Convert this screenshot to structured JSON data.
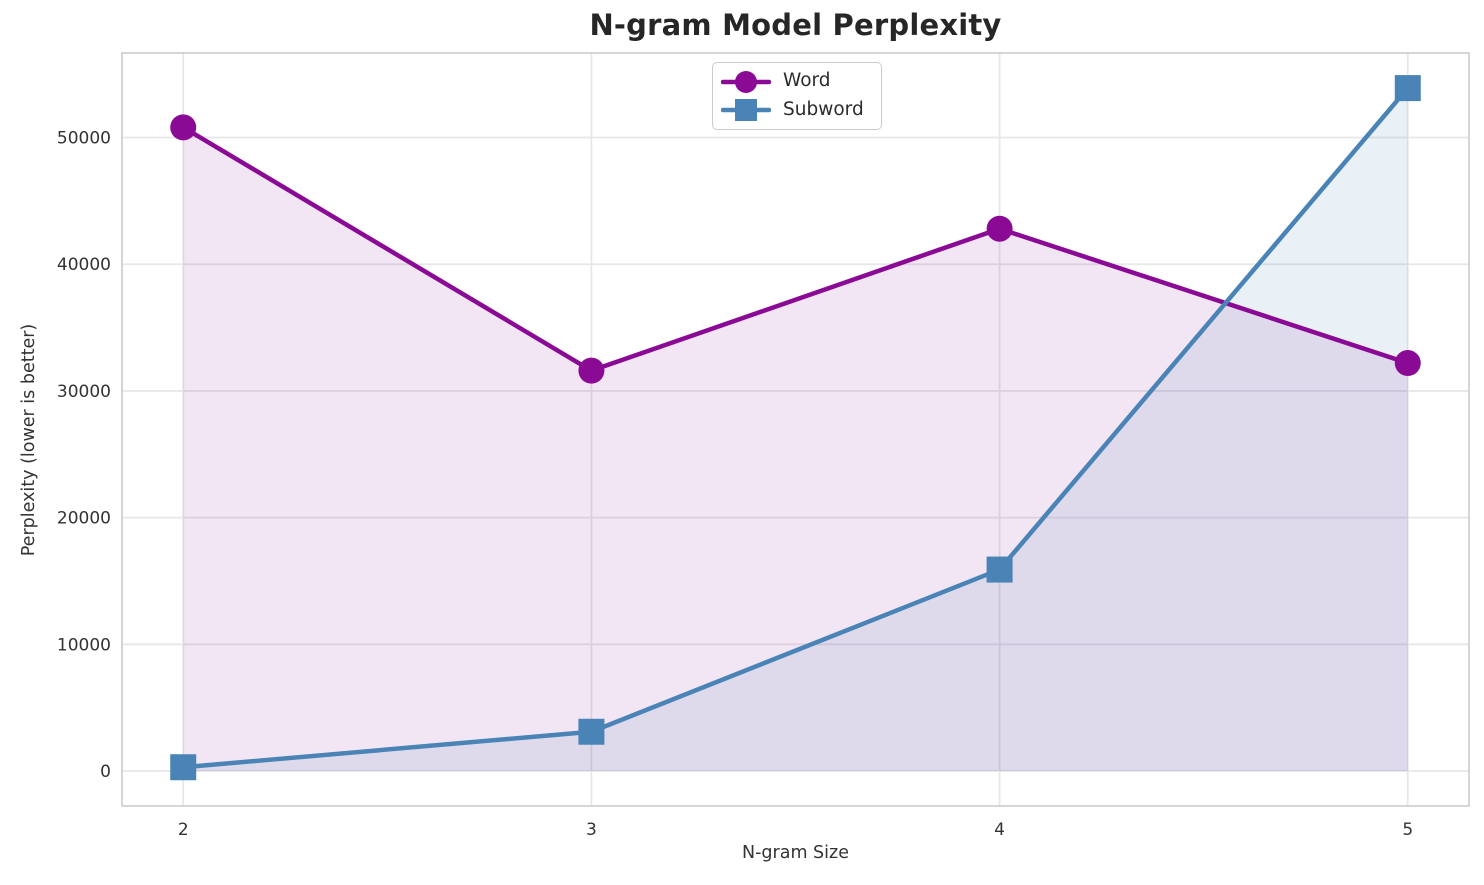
{
  "chart_data": {
    "type": "line",
    "title": "N-gram Model Perplexity",
    "xlabel": "N-gram Size",
    "ylabel": "Perplexity (lower is better)",
    "x": [
      2,
      3,
      4,
      5
    ],
    "xticks": [
      2,
      3,
      4,
      5
    ],
    "yticks": [
      0,
      10000,
      20000,
      30000,
      40000,
      50000
    ],
    "xlim": [
      1.85,
      5.15
    ],
    "ylim": [
      -2760,
      56670
    ],
    "grid": true,
    "fill_to_zero": true,
    "legend_position": "upper center",
    "series": [
      {
        "name": "Word",
        "marker": "circle",
        "color": "#8A0A96",
        "fill_opacity": 0.1,
        "values": [
          50800,
          31600,
          42800,
          32200
        ]
      },
      {
        "name": "Subword",
        "marker": "square",
        "color": "#4A84B6",
        "fill_opacity": 0.12,
        "values": [
          300,
          3100,
          15900,
          53900
        ]
      }
    ],
    "style": {
      "background": "#ffffff",
      "grid_color": "#e7e7e7",
      "spine_color": "#cbcbcb",
      "tick_color": "#333333",
      "label_color": "#333333",
      "title_color": "#262626",
      "legend_border": "#cccccc",
      "legend_text": "#2b2b2b"
    }
  }
}
